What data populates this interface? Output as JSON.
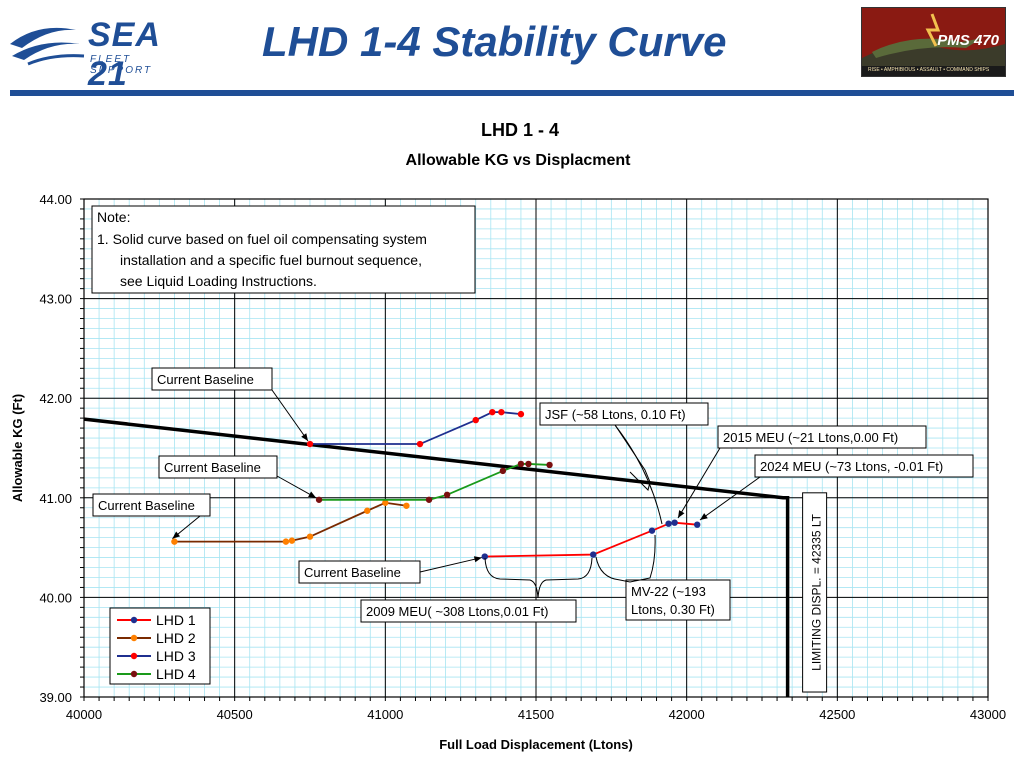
{
  "header": {
    "logo_main": "SEA 21",
    "logo_sub": "FLEET SUPPORT",
    "title": "LHD 1-4 Stability Curve",
    "badge_text": "PMS 470",
    "badge_subtext": "RISE • AMPHIBIOUS • ASSAULT • COMMAND SHIPS"
  },
  "chart_data": {
    "type": "line",
    "title": "LHD 1 - 4",
    "subtitle": "Allowable KG vs Displacment",
    "xlabel": "Full Load Displacement (Ltons)",
    "ylabel": "Allowable KG (Ft)",
    "xlim": [
      40000,
      43000
    ],
    "ylim": [
      39.0,
      44.0
    ],
    "x_ticks": [
      "40000",
      "40500",
      "41000",
      "41500",
      "42000",
      "42500",
      "43000"
    ],
    "y_ticks": [
      "39.00",
      "40.00",
      "41.00",
      "42.00",
      "43.00",
      "44.00"
    ],
    "grid": true,
    "legend_position": "bottom-left",
    "limit_curve": {
      "points": [
        [
          40000,
          41.79
        ],
        [
          42320,
          41.0
        ],
        [
          42335,
          41.0
        ],
        [
          42335,
          39.0
        ]
      ]
    },
    "limiting_displacement_label": "LIMITING DISPL. = 42335 LT",
    "series": [
      {
        "name": "LHD 1",
        "line_color": "#ff0000",
        "marker_color": "#1f2f8f",
        "points": [
          [
            41330,
            40.41
          ],
          [
            41690,
            40.43
          ],
          [
            41885,
            40.67
          ],
          [
            41940,
            40.74
          ],
          [
            41960,
            40.75
          ],
          [
            42035,
            40.73
          ]
        ]
      },
      {
        "name": "LHD 2",
        "line_color": "#7a2a00",
        "marker_color": "#ff8000",
        "points": [
          [
            40300,
            40.56
          ],
          [
            40670,
            40.56
          ],
          [
            40690,
            40.57
          ],
          [
            40750,
            40.61
          ],
          [
            40940,
            40.87
          ],
          [
            41000,
            40.95
          ],
          [
            41070,
            40.92
          ]
        ]
      },
      {
        "name": "LHD 3",
        "line_color": "#1f2f8f",
        "marker_color": "#ff0000",
        "points": [
          [
            40750,
            41.54
          ],
          [
            41115,
            41.54
          ],
          [
            41300,
            41.78
          ],
          [
            41355,
            41.86
          ],
          [
            41385,
            41.86
          ],
          [
            41450,
            41.84
          ]
        ]
      },
      {
        "name": "LHD 4",
        "line_color": "#1a9a1a",
        "marker_color": "#7a1010",
        "points": [
          [
            40780,
            40.98
          ],
          [
            41145,
            40.98
          ],
          [
            41205,
            41.03
          ],
          [
            41390,
            41.27
          ],
          [
            41450,
            41.34
          ],
          [
            41475,
            41.34
          ],
          [
            41545,
            41.33
          ]
        ]
      }
    ],
    "annotations": {
      "note_title": "Note:",
      "note_line1": "1.  Solid curve based on fuel oil compensating system",
      "note_line2": "installation and a specific fuel burnout sequence,",
      "note_line3": "see Liquid Loading Instructions.",
      "baseline_label": "Current Baseline",
      "jsf": "JSF (~58 Ltons, 0.10 Ft)",
      "meu2015": "2015 MEU (~21 Ltons,0.00 Ft)",
      "meu2024": "2024 MEU (~73 Ltons, -0.01 Ft)",
      "mv22_line1": "MV-22 (~193",
      "mv22_line2": "Ltons, 0.30 Ft)",
      "meu2009": "2009 MEU( ~308 Ltons,0.01 Ft)"
    }
  }
}
